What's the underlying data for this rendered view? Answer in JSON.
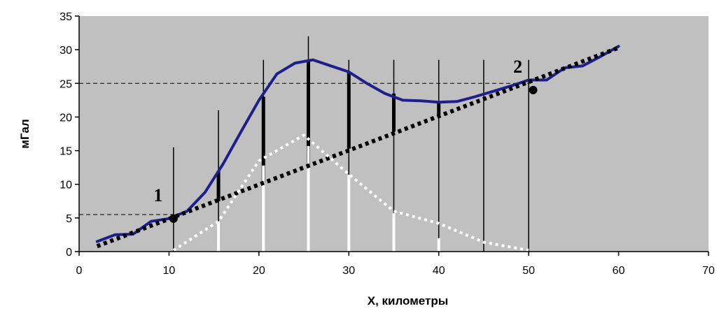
{
  "chart_data": {
    "type": "line",
    "xlabel": "X, километры",
    "ylabel": "мГал",
    "xlim": [
      0,
      70
    ],
    "ylim": [
      0,
      35
    ],
    "xticks": [
      0,
      10,
      20,
      30,
      40,
      50,
      60,
      70
    ],
    "yticks": [
      0,
      5,
      10,
      15,
      20,
      25,
      30,
      35
    ],
    "plot_background": "#c0c0c0",
    "grid": false,
    "colors": {
      "observed": "#1f1f8c",
      "regional": "#000000",
      "residual": "#ffffff"
    },
    "series": [
      {
        "style": "solid",
        "x": [
          2,
          4,
          6,
          8,
          10,
          12,
          14,
          16,
          18,
          20,
          22,
          24,
          26,
          28,
          30,
          32,
          34,
          36,
          38,
          40,
          42,
          44,
          46,
          48,
          50,
          52,
          54,
          56,
          58,
          60
        ],
        "y": [
          1.5,
          2.5,
          2.6,
          4.5,
          4.9,
          6.0,
          8.8,
          13.0,
          17.8,
          22.5,
          26.4,
          28.0,
          28.5,
          27.6,
          26.7,
          25.0,
          23.5,
          22.5,
          22.4,
          22.2,
          22.3,
          23.0,
          23.8,
          24.6,
          25.5,
          25.5,
          27.3,
          27.6,
          29.0,
          30.5
        ]
      },
      {
        "style": "dotted",
        "x": [
          2,
          60
        ],
        "y": [
          0.8,
          30.3
        ]
      },
      {
        "style": "dotted",
        "x": [
          10.5,
          15.5,
          20,
          25,
          30,
          35,
          40,
          45,
          50
        ],
        "y": [
          0.2,
          4.5,
          13.5,
          17.3,
          11.5,
          6.0,
          4.2,
          1.4,
          0.2
        ]
      }
    ],
    "vertical_lines": [
      {
        "x": 10.5,
        "y_top": 15.5
      },
      {
        "x": 15.5,
        "y_top": 21
      },
      {
        "x": 20.5,
        "y_top": 28.5
      },
      {
        "x": 25.5,
        "y_top": 32
      },
      {
        "x": 30,
        "y_top": 28.5
      },
      {
        "x": 35,
        "y_top": 28.5
      },
      {
        "x": 40,
        "y_top": 28.5
      },
      {
        "x": 45,
        "y_top": 28.5
      },
      {
        "x": 50,
        "y_top": 28.5
      }
    ],
    "residual_segments": [
      {
        "x": 15.5,
        "y_low": 7.5,
        "y_high": 12.0
      },
      {
        "x": 20.5,
        "y_low": 10.2,
        "y_high": 23.0
      },
      {
        "x": 25.5,
        "y_low": 12.8,
        "y_high": 28.5
      },
      {
        "x": 30,
        "y_low": 15.3,
        "y_high": 26.7
      },
      {
        "x": 35,
        "y_low": 17.8,
        "y_high": 23.5
      },
      {
        "x": 40,
        "y_low": 20.3,
        "y_high": 22.3
      }
    ],
    "reference_lines": [
      {
        "y": 25,
        "x_from": 0,
        "x_to": 50
      },
      {
        "y": 5.5,
        "x_from": 0,
        "x_to": 10.5
      }
    ],
    "points": [
      {
        "label": "1",
        "x": 10.5,
        "y": 4.9
      },
      {
        "label": "2",
        "x": 50.5,
        "y": 24.0
      }
    ]
  }
}
